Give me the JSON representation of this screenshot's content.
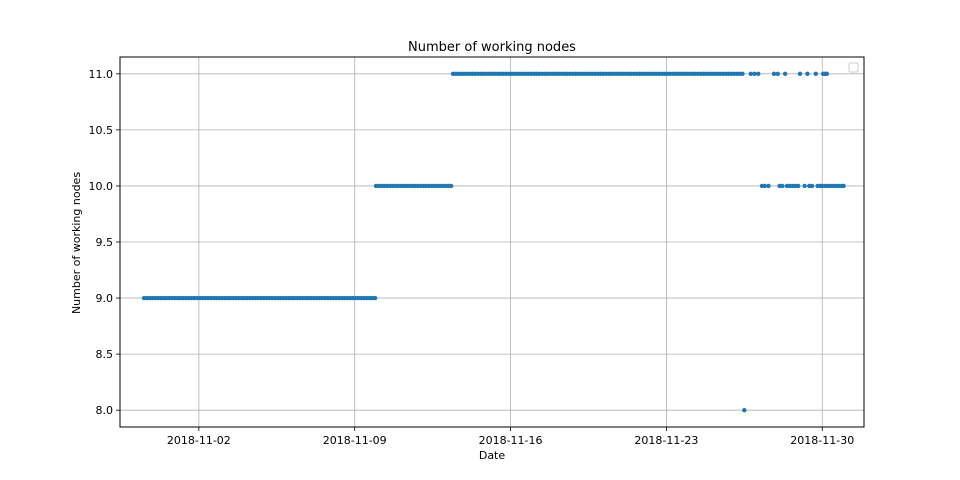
{
  "chart_data": {
    "type": "scatter",
    "title": "Number of working nodes",
    "xlabel": "Date",
    "ylabel": "Number of working nodes",
    "x_type": "date",
    "xlim": [
      "2018-10-29T11:00",
      "2018-12-01T21:00"
    ],
    "ylim": [
      7.85,
      11.15
    ],
    "x_ticks": [
      "2018-11-02",
      "2018-11-09",
      "2018-11-16",
      "2018-11-23",
      "2018-11-30"
    ],
    "y_ticks": [
      8.0,
      8.5,
      9.0,
      9.5,
      10.0,
      10.5,
      11.0
    ],
    "y_tick_labels": [
      "8.0",
      "8.5",
      "9.0",
      "9.5",
      "10.0",
      "10.5",
      "11.0"
    ],
    "grid": true,
    "legend": "upper right (empty)",
    "marker_color": "#1f77b4",
    "series": [
      {
        "runs": [
          {
            "start": "2018-10-30T13:00",
            "end": "2018-11-09T22:00",
            "step_hours": 3,
            "y": 9.0
          },
          {
            "start": "2018-11-09T23:00",
            "end": "2018-11-13T10:00",
            "step_hours": 3,
            "y": 10.0
          },
          {
            "start": "2018-11-13T10:00",
            "end": "2018-11-26T10:00",
            "step_hours": 3,
            "y": 11.0
          }
        ],
        "points": [
          {
            "x": "2018-11-26T12:00",
            "y": 8.0
          },
          {
            "x": "2018-11-26T19:00",
            "y": 11.0
          },
          {
            "x": "2018-11-26T23:00",
            "y": 11.0
          },
          {
            "x": "2018-11-27T03:00",
            "y": 11.0
          },
          {
            "x": "2018-11-27T07:00",
            "y": 10.0
          },
          {
            "x": "2018-11-27T10:00",
            "y": 10.0
          },
          {
            "x": "2018-11-27T14:00",
            "y": 10.0
          },
          {
            "x": "2018-11-27T20:00",
            "y": 11.0
          },
          {
            "x": "2018-11-28T00:00",
            "y": 11.0
          },
          {
            "x": "2018-11-28T02:00",
            "y": 10.0
          },
          {
            "x": "2018-11-28T05:00",
            "y": 10.0
          },
          {
            "x": "2018-11-28T08:00",
            "y": 11.0
          },
          {
            "x": "2018-11-28T10:00",
            "y": 10.0
          },
          {
            "x": "2018-11-28T13:00",
            "y": 10.0
          },
          {
            "x": "2018-11-28T16:00",
            "y": 10.0
          },
          {
            "x": "2018-11-28T19:00",
            "y": 10.0
          },
          {
            "x": "2018-11-28T22:00",
            "y": 10.0
          },
          {
            "x": "2018-11-29T00:00",
            "y": 11.0
          },
          {
            "x": "2018-11-29T05:00",
            "y": 10.0
          },
          {
            "x": "2018-11-29T08:00",
            "y": 11.0
          },
          {
            "x": "2018-11-29T10:00",
            "y": 10.0
          },
          {
            "x": "2018-11-29T13:00",
            "y": 10.0
          },
          {
            "x": "2018-11-29T17:00",
            "y": 11.0
          },
          {
            "x": "2018-11-29T19:00",
            "y": 10.0
          },
          {
            "x": "2018-11-29T22:00",
            "y": 10.0
          },
          {
            "x": "2018-11-30T01:00",
            "y": 11.0
          },
          {
            "x": "2018-11-30T03:00",
            "y": 11.0
          },
          {
            "x": "2018-11-30T05:00",
            "y": 11.0
          },
          {
            "x": "2018-11-30T00:00",
            "y": 10.0
          },
          {
            "x": "2018-11-30T03:00",
            "y": 10.0
          },
          {
            "x": "2018-11-30T06:00",
            "y": 10.0
          },
          {
            "x": "2018-11-30T09:00",
            "y": 10.0
          },
          {
            "x": "2018-11-30T12:00",
            "y": 10.0
          },
          {
            "x": "2018-11-30T15:00",
            "y": 10.0
          },
          {
            "x": "2018-11-30T18:00",
            "y": 10.0
          },
          {
            "x": "2018-11-30T21:00",
            "y": 10.0
          },
          {
            "x": "2018-11-30T23:00",
            "y": 10.0
          }
        ]
      }
    ]
  }
}
